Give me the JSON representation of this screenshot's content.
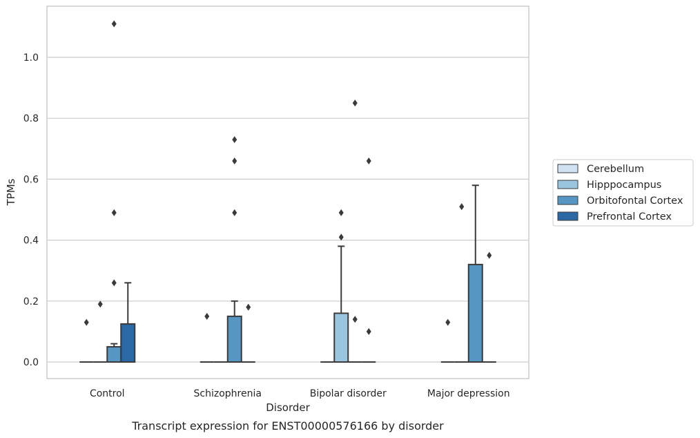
{
  "chart_data": {
    "type": "box",
    "caption": "Transcript expression for ENST00000576166 by disorder",
    "xlabel": "Disorder",
    "ylabel": "TPMs",
    "ylim": [
      -0.055,
      1.175
    ],
    "yticks": [
      0.0,
      0.2,
      0.4,
      0.6,
      0.8,
      1.0
    ],
    "grid": "horizontal",
    "legend_position": "right",
    "categories": [
      "Control",
      "Schizophrenia",
      "Bipolar disorder",
      "Major depression"
    ],
    "series": [
      {
        "name": "Cerebellum",
        "color": "#d0e2f2",
        "boxes": [
          {
            "q1": 0,
            "median": 0,
            "q3": 0,
            "whisker_low": 0,
            "whisker_high": 0,
            "outliers": [
              0.13
            ]
          },
          {
            "q1": 0,
            "median": 0,
            "q3": 0,
            "whisker_low": 0,
            "whisker_high": 0,
            "outliers": [
              0.15
            ]
          },
          {
            "q1": 0,
            "median": 0,
            "q3": 0,
            "whisker_low": 0,
            "whisker_high": 0,
            "outliers": []
          },
          {
            "q1": 0,
            "median": 0,
            "q3": 0,
            "whisker_low": 0,
            "whisker_high": 0,
            "outliers": [
              0.13
            ]
          }
        ]
      },
      {
        "name": "Hipppocampus",
        "color": "#9ac5de",
        "boxes": [
          {
            "q1": 0,
            "median": 0,
            "q3": 0,
            "whisker_low": 0,
            "whisker_high": 0,
            "outliers": [
              0.19
            ]
          },
          {
            "q1": 0,
            "median": 0,
            "q3": 0,
            "whisker_low": 0,
            "whisker_high": 0,
            "outliers": []
          },
          {
            "q1": 0,
            "median": 0,
            "q3": 0.16,
            "whisker_low": 0,
            "whisker_high": 0.38,
            "outliers": [
              0.41,
              0.49
            ]
          },
          {
            "q1": 0,
            "median": 0,
            "q3": 0,
            "whisker_low": 0,
            "whisker_high": 0,
            "outliers": [
              0.51
            ]
          }
        ]
      },
      {
        "name": "Orbitofontal Cortex",
        "color": "#5596c2",
        "boxes": [
          {
            "q1": 0,
            "median": 0,
            "q3": 0.05,
            "whisker_low": 0,
            "whisker_high": 0.06,
            "outliers": [
              0.26,
              0.49,
              1.11
            ]
          },
          {
            "q1": 0,
            "median": 0,
            "q3": 0.15,
            "whisker_low": 0,
            "whisker_high": 0.2,
            "outliers": [
              0.49,
              0.66,
              0.73
            ]
          },
          {
            "q1": 0,
            "median": 0,
            "q3": 0,
            "whisker_low": 0,
            "whisker_high": 0,
            "outliers": [
              0.14,
              0.85
            ]
          },
          {
            "q1": 0,
            "median": 0,
            "q3": 0.32,
            "whisker_low": 0,
            "whisker_high": 0.58,
            "outliers": []
          }
        ]
      },
      {
        "name": "Prefrontal Cortex",
        "color": "#2a69a6",
        "boxes": [
          {
            "q1": 0,
            "median": 0,
            "q3": 0.125,
            "whisker_low": 0,
            "whisker_high": 0.26,
            "outliers": []
          },
          {
            "q1": 0,
            "median": 0,
            "q3": 0,
            "whisker_low": 0,
            "whisker_high": 0,
            "outliers": [
              0.18
            ]
          },
          {
            "q1": 0,
            "median": 0,
            "q3": 0,
            "whisker_low": 0,
            "whisker_high": 0,
            "outliers": [
              0.1,
              0.66
            ]
          },
          {
            "q1": 0,
            "median": 0,
            "q3": 0,
            "whisker_low": 0,
            "whisker_high": 0,
            "outliers": [
              0.35
            ]
          }
        ]
      }
    ]
  }
}
